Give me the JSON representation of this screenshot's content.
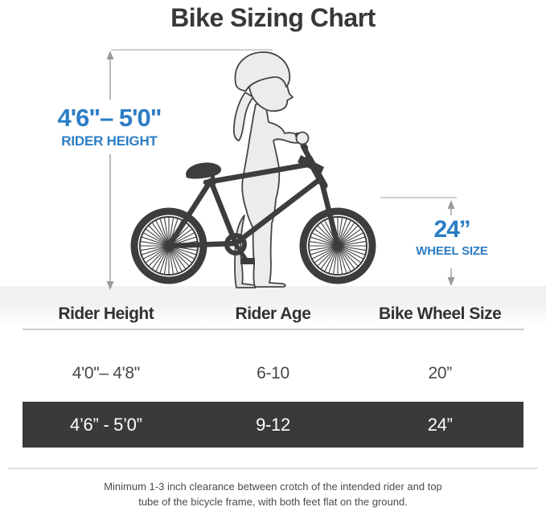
{
  "title": "Bike Sizing Chart",
  "annotations": {
    "rider_height": {
      "value": "4'6\"– 5'0\"",
      "label": "RIDER HEIGHT"
    },
    "wheel_size": {
      "value": "24’’",
      "label": "WHEEL SIZE"
    }
  },
  "illustration": {
    "description": "Girl wearing a helmet standing flat-footed over a dark BMX-style 24-inch bike, with gray dimension arrows for rider height (left) and wheel size (right)"
  },
  "table": {
    "headers": {
      "rider_height": "Rider Height",
      "rider_age": "Rider Age",
      "bike_wheel_size": "Bike Wheel Size"
    },
    "rows": [
      {
        "height": "4'0\"– 4'8\"",
        "age": "6-10",
        "wheel": "20”"
      },
      {
        "height": "4’6” - 5’0”",
        "age": "9-12",
        "wheel": "24”"
      }
    ]
  },
  "footnote": {
    "line1": "Minimum 1-3 inch clearance between crotch of the intended rider and top",
    "line2": "tube of the bicycle frame, with both feet flat on the ground."
  },
  "colors": {
    "accent_blue": "#2b7dc4",
    "highlight_row_bg": "#3a3a3a",
    "highlight_row_text": "#ffffff",
    "bike_dark": "#3d3d3d",
    "person_fill": "#ececec",
    "dimension_gray": "#9b9b9b"
  }
}
